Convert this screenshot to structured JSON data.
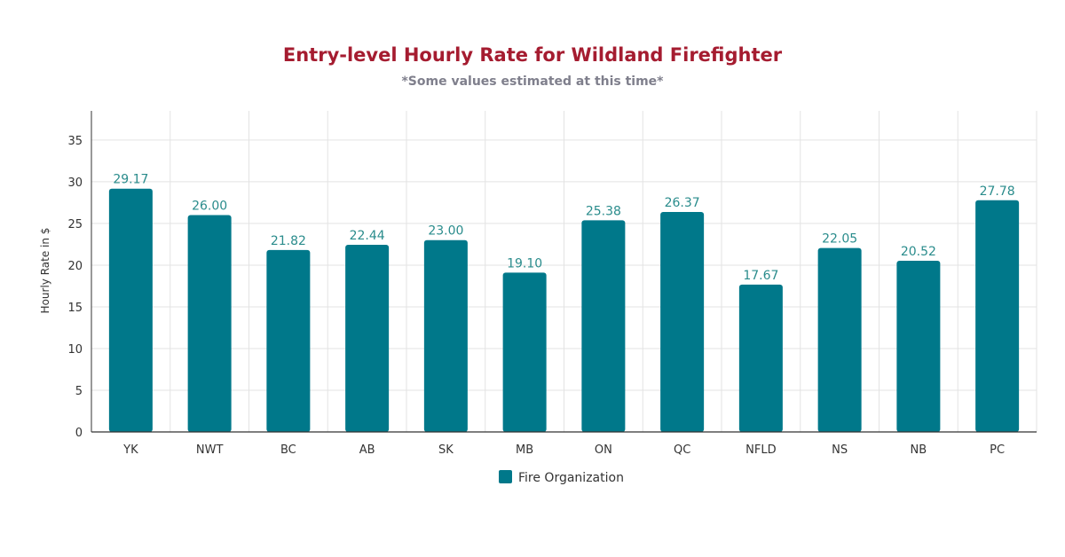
{
  "colors": {
    "bar": "#00788a",
    "title": "#a51c30",
    "subtitle": "#7f7f8c",
    "data_label": "#2a8c8c",
    "grid": "#e3e3e3",
    "axis": "#333333"
  },
  "chart_data": {
    "type": "bar",
    "title": "Entry-level Hourly Rate for Wildland Firefighter",
    "subtitle": "*Some values estimated at this time*",
    "xlabel": "",
    "ylabel": "Hourly Rate in $",
    "ylim": [
      0,
      38.5
    ],
    "yticks": [
      0,
      5,
      10,
      15,
      20,
      25,
      30,
      35
    ],
    "grid": true,
    "legend_position": "bottom-center",
    "categories": [
      "YK",
      "NWT",
      "BC",
      "AB",
      "SK",
      "MB",
      "ON",
      "QC",
      "NFLD",
      "NS",
      "NB",
      "PC"
    ],
    "series": [
      {
        "name": "Fire Organization",
        "values": [
          29.17,
          26.0,
          21.82,
          22.44,
          23.0,
          19.1,
          25.38,
          26.37,
          17.67,
          22.05,
          20.52,
          27.78
        ],
        "labels": [
          "29.17",
          "26.00",
          "21.82",
          "22.44",
          "23.00",
          "19.10",
          "25.38",
          "26.37",
          "17.67",
          "22.05",
          "20.52",
          "27.78"
        ]
      }
    ]
  }
}
